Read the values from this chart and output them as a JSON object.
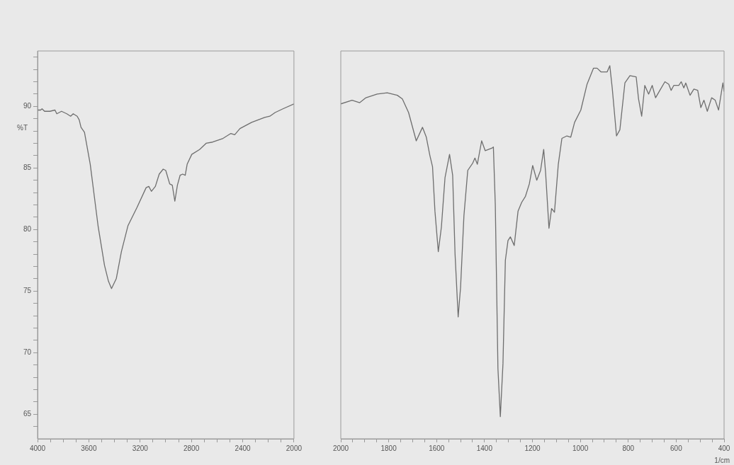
{
  "chart_data": [
    {
      "type": "line",
      "ylabel": "%T",
      "marker": "none",
      "xlim": [
        4000,
        2000
      ],
      "ylim": [
        63,
        94.5
      ],
      "xticks": [
        4000,
        {
          "value": 3900,
          "label": null
        },
        {
          "value": 3800,
          "label": null
        },
        {
          "value": 3700,
          "label": null
        },
        3600,
        {
          "value": 3500,
          "label": null
        },
        {
          "value": 3400,
          "label": null
        },
        {
          "value": 3300,
          "label": null
        },
        3200,
        {
          "value": 3100,
          "label": null
        },
        {
          "value": 3000,
          "label": null
        },
        {
          "value": 2900,
          "label": null
        },
        2800,
        {
          "value": 2700,
          "label": null
        },
        {
          "value": 2600,
          "label": null
        },
        {
          "value": 2500,
          "label": null
        },
        2400,
        {
          "value": 2300,
          "label": null
        },
        {
          "value": 2200,
          "label": null
        },
        {
          "value": 2100,
          "label": null
        },
        2000
      ],
      "yticks": [
        {
          "value": 64,
          "label": null
        },
        65,
        {
          "value": 66,
          "label": null
        },
        {
          "value": 67,
          "label": null
        },
        {
          "value": 68,
          "label": null
        },
        {
          "value": 69,
          "label": null
        },
        70,
        {
          "value": 71,
          "label": null
        },
        {
          "value": 72,
          "label": null
        },
        {
          "value": 73,
          "label": null
        },
        {
          "value": 74,
          "label": null
        },
        75,
        {
          "value": 76,
          "label": null
        },
        {
          "value": 77,
          "label": null
        },
        {
          "value": 78,
          "label": null
        },
        {
          "value": 79,
          "label": null
        },
        80,
        {
          "value": 81,
          "label": null
        },
        {
          "value": 82,
          "label": null
        },
        {
          "value": 83,
          "label": null
        },
        {
          "value": 84,
          "label": null
        },
        85,
        {
          "value": 86,
          "label": null
        },
        {
          "value": 87,
          "label": null
        },
        {
          "value": 88,
          "label": null
        },
        {
          "value": 89,
          "label": null
        },
        90,
        {
          "value": 91,
          "label": null
        },
        {
          "value": 92,
          "label": null
        },
        {
          "value": 93,
          "label": null
        },
        {
          "value": 94,
          "label": null
        }
      ],
      "x": [
        4000,
        3976,
        3965,
        3945,
        3904,
        3864,
        3850,
        3813,
        3772,
        3742,
        3722,
        3691,
        3675,
        3661,
        3634,
        3589,
        3528,
        3478,
        3447,
        3423,
        3386,
        3346,
        3295,
        3224,
        3153,
        3132,
        3112,
        3081,
        3051,
        3020,
        3000,
        2969,
        2949,
        2929,
        2909,
        2888,
        2868,
        2848,
        2833,
        2797,
        2736,
        2685,
        2634,
        2553,
        2492,
        2462,
        2421,
        2330,
        2228,
        2188,
        2147,
        2086,
        2000
      ],
      "series": [
        {
          "color": "#6e6e6e",
          "values": [
            89.7,
            89.7,
            89.8,
            89.6,
            89.6,
            89.7,
            89.4,
            89.6,
            89.4,
            89.2,
            89.4,
            89.2,
            88.9,
            88.3,
            87.9,
            85.3,
            80.3,
            77.1,
            75.8,
            75.2,
            76.0,
            78.2,
            80.3,
            81.8,
            83.4,
            83.5,
            83.1,
            83.5,
            84.5,
            84.9,
            84.8,
            83.7,
            83.6,
            82.3,
            83.6,
            84.4,
            84.5,
            84.4,
            85.3,
            86.1,
            86.5,
            87.0,
            87.1,
            87.4,
            87.8,
            87.7,
            88.2,
            88.7,
            89.1,
            89.2,
            89.5,
            89.8,
            90.2
          ]
        }
      ]
    },
    {
      "type": "line",
      "xlabel": "1/cm",
      "marker": "none",
      "tick_labels": "x",
      "xlim": [
        2000,
        400
      ],
      "ylim": [
        63,
        94.5
      ],
      "xticks": [
        2000,
        {
          "value": 1950,
          "label": null
        },
        {
          "value": 1900,
          "label": null
        },
        {
          "value": 1850,
          "label": null
        },
        1800,
        {
          "value": 1750,
          "label": null
        },
        {
          "value": 1700,
          "label": null
        },
        {
          "value": 1650,
          "label": null
        },
        1600,
        {
          "value": 1550,
          "label": null
        },
        {
          "value": 1500,
          "label": null
        },
        {
          "value": 1450,
          "label": null
        },
        1400,
        {
          "value": 1350,
          "label": null
        },
        {
          "value": 1300,
          "label": null
        },
        {
          "value": 1250,
          "label": null
        },
        1200,
        {
          "value": 1150,
          "label": null
        },
        {
          "value": 1100,
          "label": null
        },
        {
          "value": 1050,
          "label": null
        },
        1000,
        {
          "value": 950,
          "label": null
        },
        {
          "value": 900,
          "label": null
        },
        {
          "value": 850,
          "label": null
        },
        800,
        {
          "value": 750,
          "label": null
        },
        {
          "value": 700,
          "label": null
        },
        {
          "value": 650,
          "label": null
        },
        600,
        {
          "value": 550,
          "label": null
        },
        {
          "value": 500,
          "label": null
        },
        {
          "value": 450,
          "label": null
        },
        400
      ],
      "x": [
        2000,
        1953,
        1921,
        1895,
        1848,
        1806,
        1764,
        1743,
        1717,
        1685,
        1659,
        1643,
        1628,
        1617,
        1607,
        1593,
        1580,
        1565,
        1546,
        1533,
        1523,
        1510,
        1500,
        1486,
        1470,
        1449,
        1440,
        1430,
        1412,
        1397,
        1370,
        1363,
        1355,
        1344,
        1334,
        1323,
        1313,
        1302,
        1292,
        1276,
        1260,
        1245,
        1229,
        1213,
        1199,
        1182,
        1166,
        1153,
        1145,
        1131,
        1120,
        1108,
        1092,
        1077,
        1056,
        1040,
        1024,
        998,
        972,
        945,
        930,
        914,
        888,
        877,
        867,
        849,
        835,
        814,
        793,
        767,
        757,
        744,
        731,
        715,
        700,
        686,
        668,
        647,
        631,
        621,
        610,
        589,
        579,
        568,
        560,
        542,
        526,
        510,
        497,
        484,
        470,
        452,
        437,
        423,
        405,
        400
      ],
      "series": [
        {
          "color": "#6e6e6e",
          "values": [
            90.2,
            90.5,
            90.3,
            90.7,
            91.0,
            91.1,
            90.9,
            90.6,
            89.5,
            87.2,
            88.3,
            87.5,
            86.0,
            85.1,
            81.5,
            78.2,
            80.2,
            84.2,
            86.1,
            84.4,
            78.0,
            72.9,
            75.3,
            81.1,
            84.8,
            85.4,
            85.8,
            85.3,
            87.2,
            86.4,
            86.6,
            86.7,
            82.0,
            68.7,
            64.8,
            69.1,
            77.5,
            79.1,
            79.4,
            78.7,
            81.5,
            82.2,
            82.7,
            83.7,
            85.2,
            84.0,
            84.8,
            86.5,
            84.6,
            80.1,
            81.7,
            81.4,
            85.3,
            87.4,
            87.6,
            87.5,
            88.7,
            89.7,
            91.8,
            93.1,
            93.1,
            92.8,
            92.8,
            93.3,
            91.5,
            87.6,
            88.1,
            91.9,
            92.5,
            92.4,
            90.6,
            89.2,
            91.7,
            91.0,
            91.7,
            90.7,
            91.3,
            92.0,
            91.8,
            91.3,
            91.7,
            91.7,
            92.0,
            91.5,
            91.9,
            90.9,
            91.4,
            91.3,
            89.9,
            90.5,
            89.6,
            90.7,
            90.5,
            89.7,
            91.9,
            91.2
          ]
        }
      ]
    }
  ]
}
